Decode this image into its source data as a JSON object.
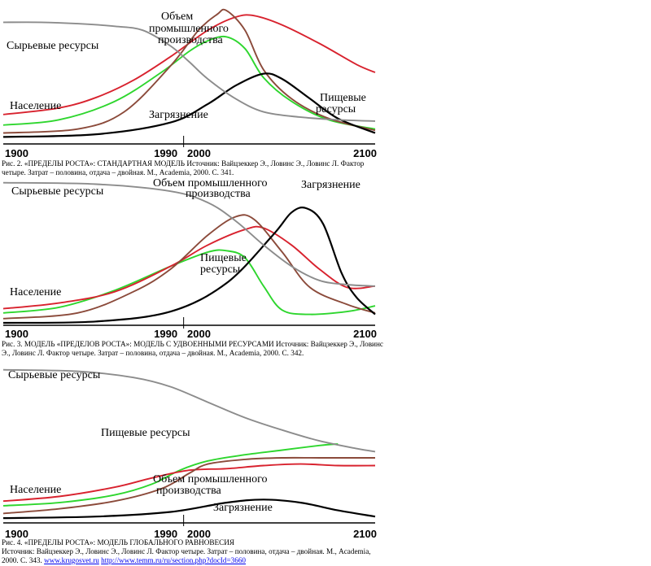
{
  "colors": {
    "raw_resources": "#8c8c8c",
    "population": "#d8222e",
    "food": "#2ed62e",
    "industry": "#8b4a3a",
    "pollution": "#000000"
  },
  "chart_data": [
    {
      "type": "line",
      "title": "",
      "x_ticks": [
        "1900",
        "1990",
        "2000",
        "2100"
      ],
      "xlim": [
        1900,
        2100
      ],
      "grid": false,
      "series": [
        {
          "name": "Сырьевые ресурсы",
          "color_key": "raw_resources",
          "points": [
            [
              1900,
              0.88
            ],
            [
              1920,
              0.88
            ],
            [
              1940,
              0.87
            ],
            [
              1960,
              0.85
            ],
            [
              1975,
              0.82
            ],
            [
              1990,
              0.7
            ],
            [
              2000,
              0.58
            ],
            [
              2010,
              0.45
            ],
            [
              2025,
              0.3
            ],
            [
              2040,
              0.2
            ],
            [
              2060,
              0.16
            ],
            [
              2080,
              0.14
            ],
            [
              2100,
              0.13
            ]
          ]
        },
        {
          "name": "Население",
          "color_key": "population",
          "points": [
            [
              1900,
              0.18
            ],
            [
              1930,
              0.23
            ],
            [
              1950,
              0.31
            ],
            [
              1970,
              0.44
            ],
            [
              1990,
              0.62
            ],
            [
              2010,
              0.82
            ],
            [
              2025,
              0.92
            ],
            [
              2035,
              0.93
            ],
            [
              2050,
              0.86
            ],
            [
              2070,
              0.72
            ],
            [
              2090,
              0.56
            ],
            [
              2100,
              0.5
            ]
          ]
        },
        {
          "name": "Пищевые ресурсы",
          "color_key": "food",
          "points": [
            [
              1900,
              0.1
            ],
            [
              1930,
              0.14
            ],
            [
              1960,
              0.28
            ],
            [
              1985,
              0.5
            ],
            [
              2000,
              0.66
            ],
            [
              2010,
              0.74
            ],
            [
              2020,
              0.77
            ],
            [
              2030,
              0.68
            ],
            [
              2040,
              0.46
            ],
            [
              2055,
              0.28
            ],
            [
              2075,
              0.14
            ],
            [
              2100,
              0.07
            ]
          ]
        },
        {
          "name": "Объем промышленного производства",
          "color_key": "industry",
          "points": [
            [
              1900,
              0.04
            ],
            [
              1940,
              0.07
            ],
            [
              1965,
              0.2
            ],
            [
              1990,
              0.55
            ],
            [
              2005,
              0.82
            ],
            [
              2015,
              0.94
            ],
            [
              2020,
              0.97
            ],
            [
              2030,
              0.82
            ],
            [
              2040,
              0.52
            ],
            [
              2055,
              0.3
            ],
            [
              2075,
              0.15
            ],
            [
              2100,
              0.06
            ]
          ]
        },
        {
          "name": "Загрязнение",
          "color_key": "pollution",
          "points": [
            [
              1900,
              0.01
            ],
            [
              1950,
              0.03
            ],
            [
              1990,
              0.12
            ],
            [
              2010,
              0.26
            ],
            [
              2025,
              0.4
            ],
            [
              2040,
              0.49
            ],
            [
              2050,
              0.45
            ],
            [
              2065,
              0.3
            ],
            [
              2080,
              0.15
            ],
            [
              2100,
              0.04
            ]
          ]
        }
      ],
      "caption": "Рис. 2. «ПРЕДЕЛЫ РОСТА»: СТАНДАРТНАЯ МОДЕЛЬ Источник: Вайцзеккер Э., Ловинс Э., Ловинс Л. Фактор четыре. Затрат – половина, отдача – двойная. М., Academia, 2000. С. 341."
    },
    {
      "type": "line",
      "title": "",
      "x_ticks": [
        "1900",
        "1990",
        "2000",
        "2100"
      ],
      "xlim": [
        1900,
        2100
      ],
      "grid": false,
      "series": [
        {
          "name": "Сырьевые ресурсы",
          "color_key": "raw_resources",
          "points": [
            [
              1900,
              0.99
            ],
            [
              1950,
              0.98
            ],
            [
              1990,
              0.93
            ],
            [
              2010,
              0.85
            ],
            [
              2025,
              0.72
            ],
            [
              2040,
              0.55
            ],
            [
              2055,
              0.4
            ],
            [
              2070,
              0.3
            ],
            [
              2085,
              0.27
            ],
            [
              2100,
              0.26
            ]
          ]
        },
        {
          "name": "Население",
          "color_key": "population",
          "points": [
            [
              1900,
              0.1
            ],
            [
              1930,
              0.14
            ],
            [
              1960,
              0.22
            ],
            [
              1990,
              0.4
            ],
            [
              2010,
              0.55
            ],
            [
              2030,
              0.66
            ],
            [
              2040,
              0.67
            ],
            [
              2055,
              0.55
            ],
            [
              2070,
              0.38
            ],
            [
              2085,
              0.25
            ],
            [
              2100,
              0.26
            ]
          ]
        },
        {
          "name": "Пищевые ресурсы",
          "color_key": "food",
          "points": [
            [
              1900,
              0.07
            ],
            [
              1930,
              0.11
            ],
            [
              1960,
              0.23
            ],
            [
              1990,
              0.4
            ],
            [
              2010,
              0.5
            ],
            [
              2020,
              0.51
            ],
            [
              2030,
              0.46
            ],
            [
              2040,
              0.26
            ],
            [
              2050,
              0.09
            ],
            [
              2065,
              0.06
            ],
            [
              2085,
              0.08
            ],
            [
              2100,
              0.12
            ]
          ]
        },
        {
          "name": "Объем промышленного производства",
          "color_key": "industry",
          "points": [
            [
              1900,
              0.03
            ],
            [
              1940,
              0.07
            ],
            [
              1970,
              0.22
            ],
            [
              1990,
              0.38
            ],
            [
              2010,
              0.62
            ],
            [
              2025,
              0.75
            ],
            [
              2035,
              0.73
            ],
            [
              2050,
              0.5
            ],
            [
              2065,
              0.25
            ],
            [
              2085,
              0.13
            ],
            [
              2100,
              0.07
            ]
          ]
        },
        {
          "name": "Загрязнение",
          "color_key": "pollution",
          "points": [
            [
              1900,
              0.0
            ],
            [
              1950,
              0.01
            ],
            [
              1990,
              0.08
            ],
            [
              2020,
              0.28
            ],
            [
              2045,
              0.62
            ],
            [
              2055,
              0.78
            ],
            [
              2063,
              0.81
            ],
            [
              2072,
              0.7
            ],
            [
              2082,
              0.35
            ],
            [
              2090,
              0.18
            ],
            [
              2100,
              0.06
            ]
          ]
        }
      ],
      "caption": "Рис. 3. МОДЕЛЬ «ПРЕДЕЛОВ РОСТА»: МОДЕЛЬ С УДВОЕННЫМИ РЕСУРСАМИ Источник: Вайцзеккер Э., Ловинс Э., Ловинс Л. Фактор четыре. Затрат – половина, отдача – двойная. М., Academia, 2000. С. 342."
    },
    {
      "type": "line",
      "title": "",
      "x_ticks": [
        "1900",
        "1990",
        "2000",
        "2100"
      ],
      "xlim": [
        1900,
        2100
      ],
      "grid": false,
      "series": [
        {
          "name": "Сырьевые ресурсы",
          "color_key": "raw_resources",
          "points": [
            [
              1900,
              0.97
            ],
            [
              1940,
              0.96
            ],
            [
              1970,
              0.92
            ],
            [
              1990,
              0.86
            ],
            [
              2010,
              0.76
            ],
            [
              2030,
              0.66
            ],
            [
              2050,
              0.58
            ],
            [
              2070,
              0.51
            ],
            [
              2090,
              0.46
            ],
            [
              2100,
              0.44
            ]
          ]
        },
        {
          "name": "Население",
          "color_key": "population",
          "points": [
            [
              1900,
              0.12
            ],
            [
              1930,
              0.15
            ],
            [
              1960,
              0.21
            ],
            [
              1980,
              0.27
            ],
            [
              2000,
              0.32
            ],
            [
              2020,
              0.33
            ],
            [
              2040,
              0.35
            ],
            [
              2060,
              0.36
            ],
            [
              2080,
              0.35
            ],
            [
              2100,
              0.35
            ]
          ]
        },
        {
          "name": "Пищевые ресурсы",
          "color_key": "food",
          "points": [
            [
              1900,
              0.09
            ],
            [
              1930,
              0.11
            ],
            [
              1960,
              0.16
            ],
            [
              1980,
              0.23
            ],
            [
              1995,
              0.32
            ],
            [
              2010,
              0.38
            ],
            [
              2030,
              0.42
            ],
            [
              2050,
              0.45
            ],
            [
              2070,
              0.48
            ],
            [
              2080,
              0.49
            ]
          ]
        },
        {
          "name": "Объем промышленного производства",
          "color_key": "industry",
          "points": [
            [
              1900,
              0.04
            ],
            [
              1930,
              0.07
            ],
            [
              1960,
              0.12
            ],
            [
              1985,
              0.2
            ],
            [
              2000,
              0.3
            ],
            [
              2010,
              0.36
            ],
            [
              2030,
              0.39
            ],
            [
              2050,
              0.4
            ],
            [
              2070,
              0.4
            ],
            [
              2100,
              0.4
            ]
          ]
        },
        {
          "name": "Загрязнение",
          "color_key": "pollution",
          "points": [
            [
              1900,
              0.01
            ],
            [
              1950,
              0.02
            ],
            [
              1990,
              0.05
            ],
            [
              2020,
              0.11
            ],
            [
              2040,
              0.13
            ],
            [
              2060,
              0.11
            ],
            [
              2080,
              0.06
            ],
            [
              2100,
              0.02
            ]
          ]
        }
      ],
      "caption": "Рис. 4. «ПРЕДЕЛЫ РОСТА»: МОДЕЛЬ ГЛОБАЛЬНОГО РАВНОВЕСИЯ",
      "caption_extra": "Источник: Вайцзеккер Э., Ловинс Э., Ловинс Л. Фактор четыре. Затрат – половина, отдача – двойная. М., Academia, 2000. С. 343.",
      "links": [
        "www.krugosvet.ru",
        "http://www.temm.ru/ru/section.php?docId=3660"
      ]
    }
  ],
  "labels": {
    "p1": {
      "raw": "Сырьевые ресурсы",
      "industry1": "Объем",
      "industry2": "промышленного",
      "industry3": "производства",
      "population": "Население",
      "pollution": "Загрязнение",
      "food1": "Пищевые",
      "food2": "ресурсы"
    },
    "p2": {
      "raw": "Сырьевые ресурсы",
      "industry1": "Объем промышленного",
      "industry2": "производства",
      "pollution": "Загрязнение",
      "food1": "Пищевые",
      "food2": "ресурсы",
      "population": "Население"
    },
    "p3": {
      "raw": "Сырьевые ресурсы",
      "food": "Пищевые ресурсы",
      "population": "Население",
      "industry1": "Объем промышленного",
      "industry2": "производства",
      "pollution": "Загрязнение"
    }
  }
}
